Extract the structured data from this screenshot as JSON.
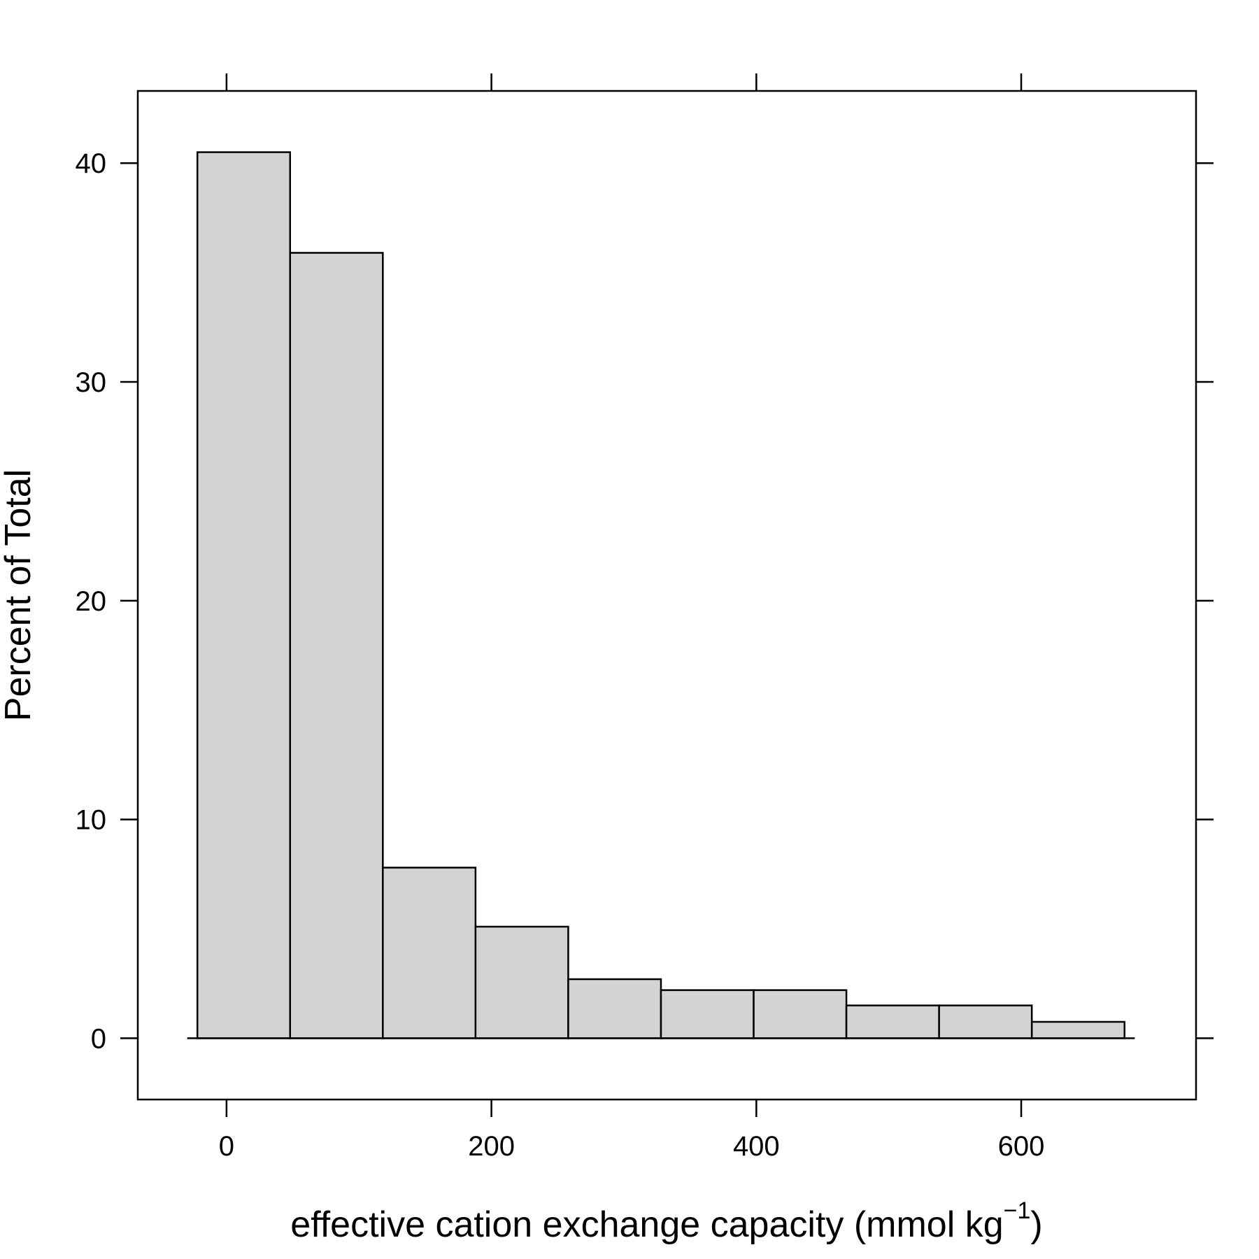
{
  "chart_data": {
    "type": "bar",
    "xlabel": "effective cation exchange capacity (mmol kg",
    "xlabel_superscript": "−1",
    "xlabel_close": ")",
    "ylabel": "Percent of Total",
    "bins": [
      {
        "start": -22,
        "end": 48,
        "value": 40.5
      },
      {
        "start": 48,
        "end": 118,
        "value": 35.9
      },
      {
        "start": 118,
        "end": 188,
        "value": 7.8
      },
      {
        "start": 188,
        "end": 258,
        "value": 5.1
      },
      {
        "start": 258,
        "end": 328,
        "value": 2.7
      },
      {
        "start": 328,
        "end": 398,
        "value": 2.2
      },
      {
        "start": 398,
        "end": 468,
        "value": 2.2
      },
      {
        "start": 468,
        "end": 538,
        "value": 1.5
      },
      {
        "start": 538,
        "end": 608,
        "value": 1.5
      },
      {
        "start": 608,
        "end": 678,
        "value": 0.75
      }
    ],
    "xlim": [
      -67,
      732
    ],
    "ylim": [
      -2.8,
      43.3
    ],
    "xticks": [
      0,
      200,
      400,
      600
    ],
    "yticks": [
      0,
      10,
      20,
      30,
      40
    ],
    "bar_color": "#d3d3d3",
    "edge_color": "#000000",
    "grid": false,
    "legend": "none"
  }
}
